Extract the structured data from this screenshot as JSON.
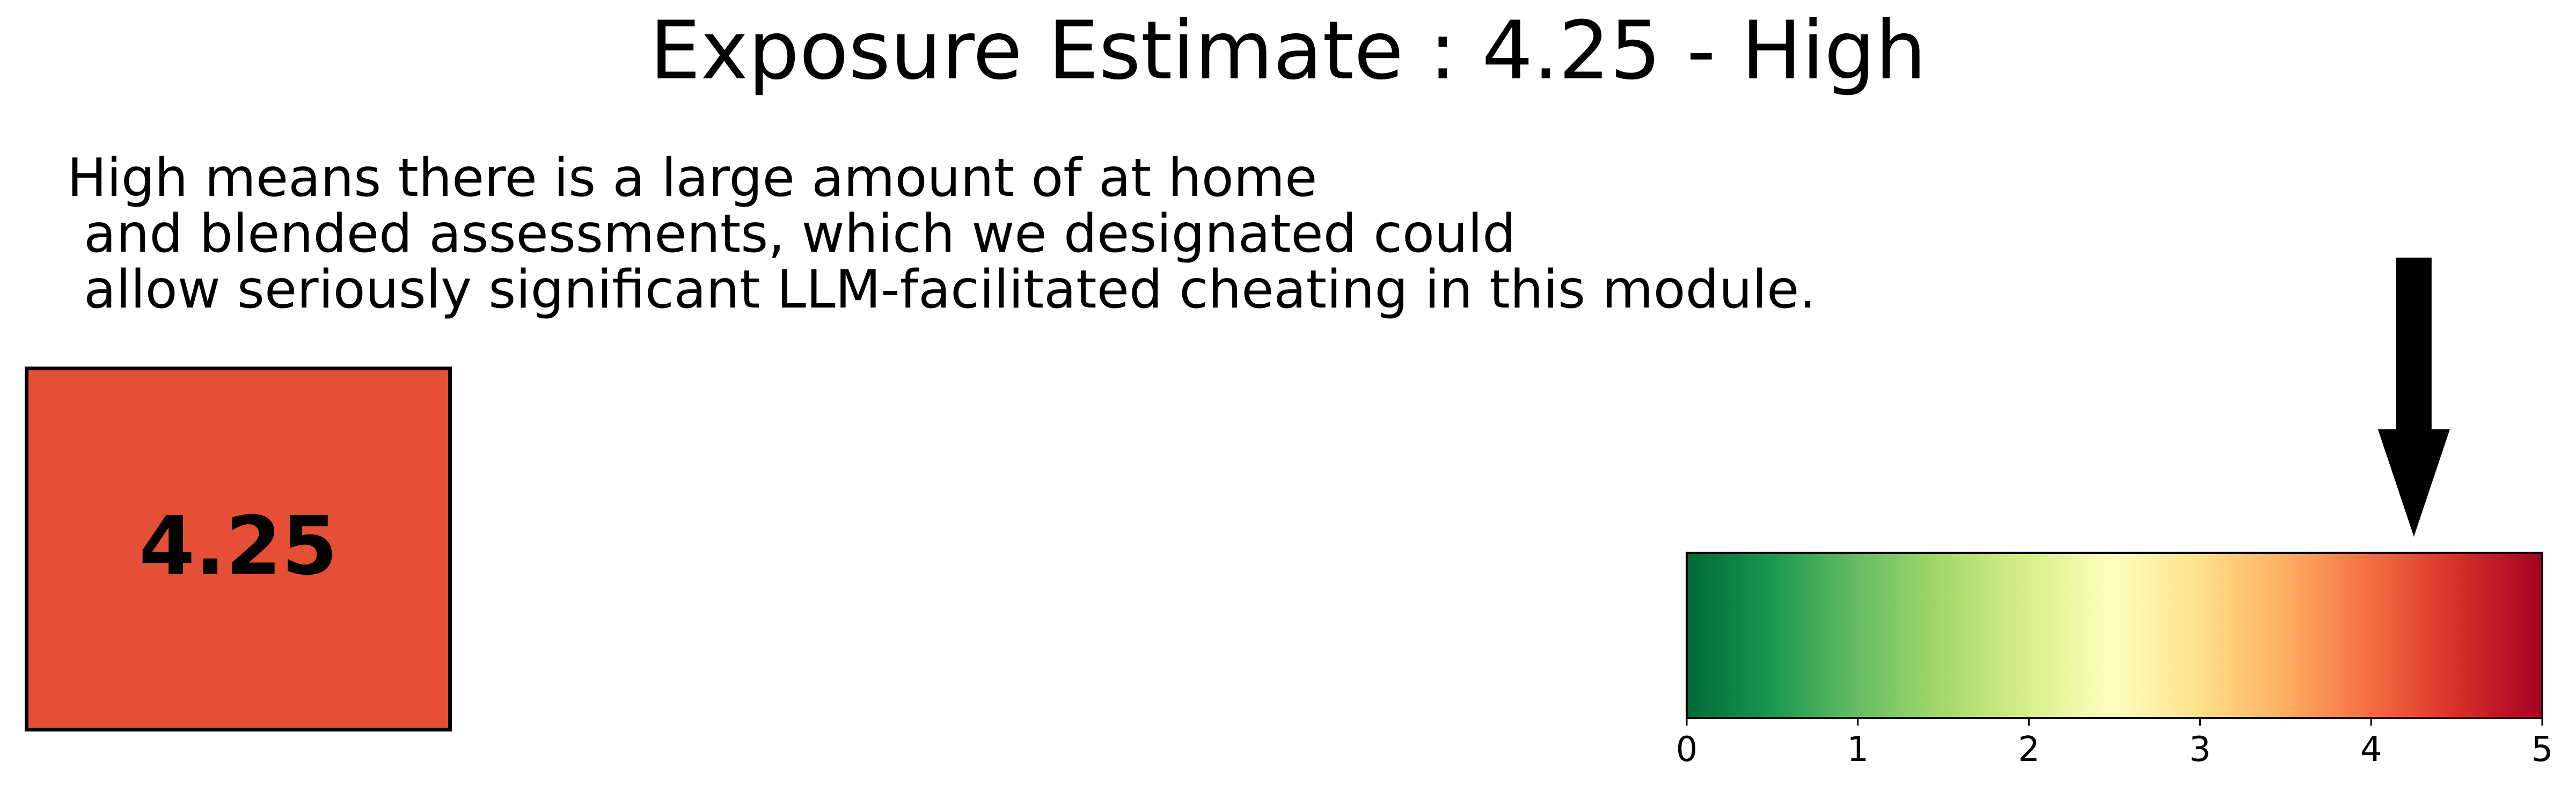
{
  "title": "Exposure Estimate : 4.25 - High",
  "description": "High means there is a large amount of at home\n and blended assessments, which we designated could\n allow seriously significant LLM-facilitated cheating in this module.",
  "score_box": {
    "value": "4.25",
    "fill_color": "#e54f35"
  },
  "chart_data": {
    "type": "colorbar",
    "value": 4.25,
    "xlim": [
      0,
      5
    ],
    "ticks": [
      "0",
      "1",
      "2",
      "3",
      "4",
      "5"
    ],
    "colormap": "RdYlGn_r",
    "color_stops": [
      "#006837",
      "#1a9850",
      "#66bd63",
      "#a6d96a",
      "#d9ef8b",
      "#ffffbf",
      "#fee08b",
      "#fdae61",
      "#f46d43",
      "#d73027",
      "#a50026"
    ],
    "marker": "down-arrow"
  }
}
